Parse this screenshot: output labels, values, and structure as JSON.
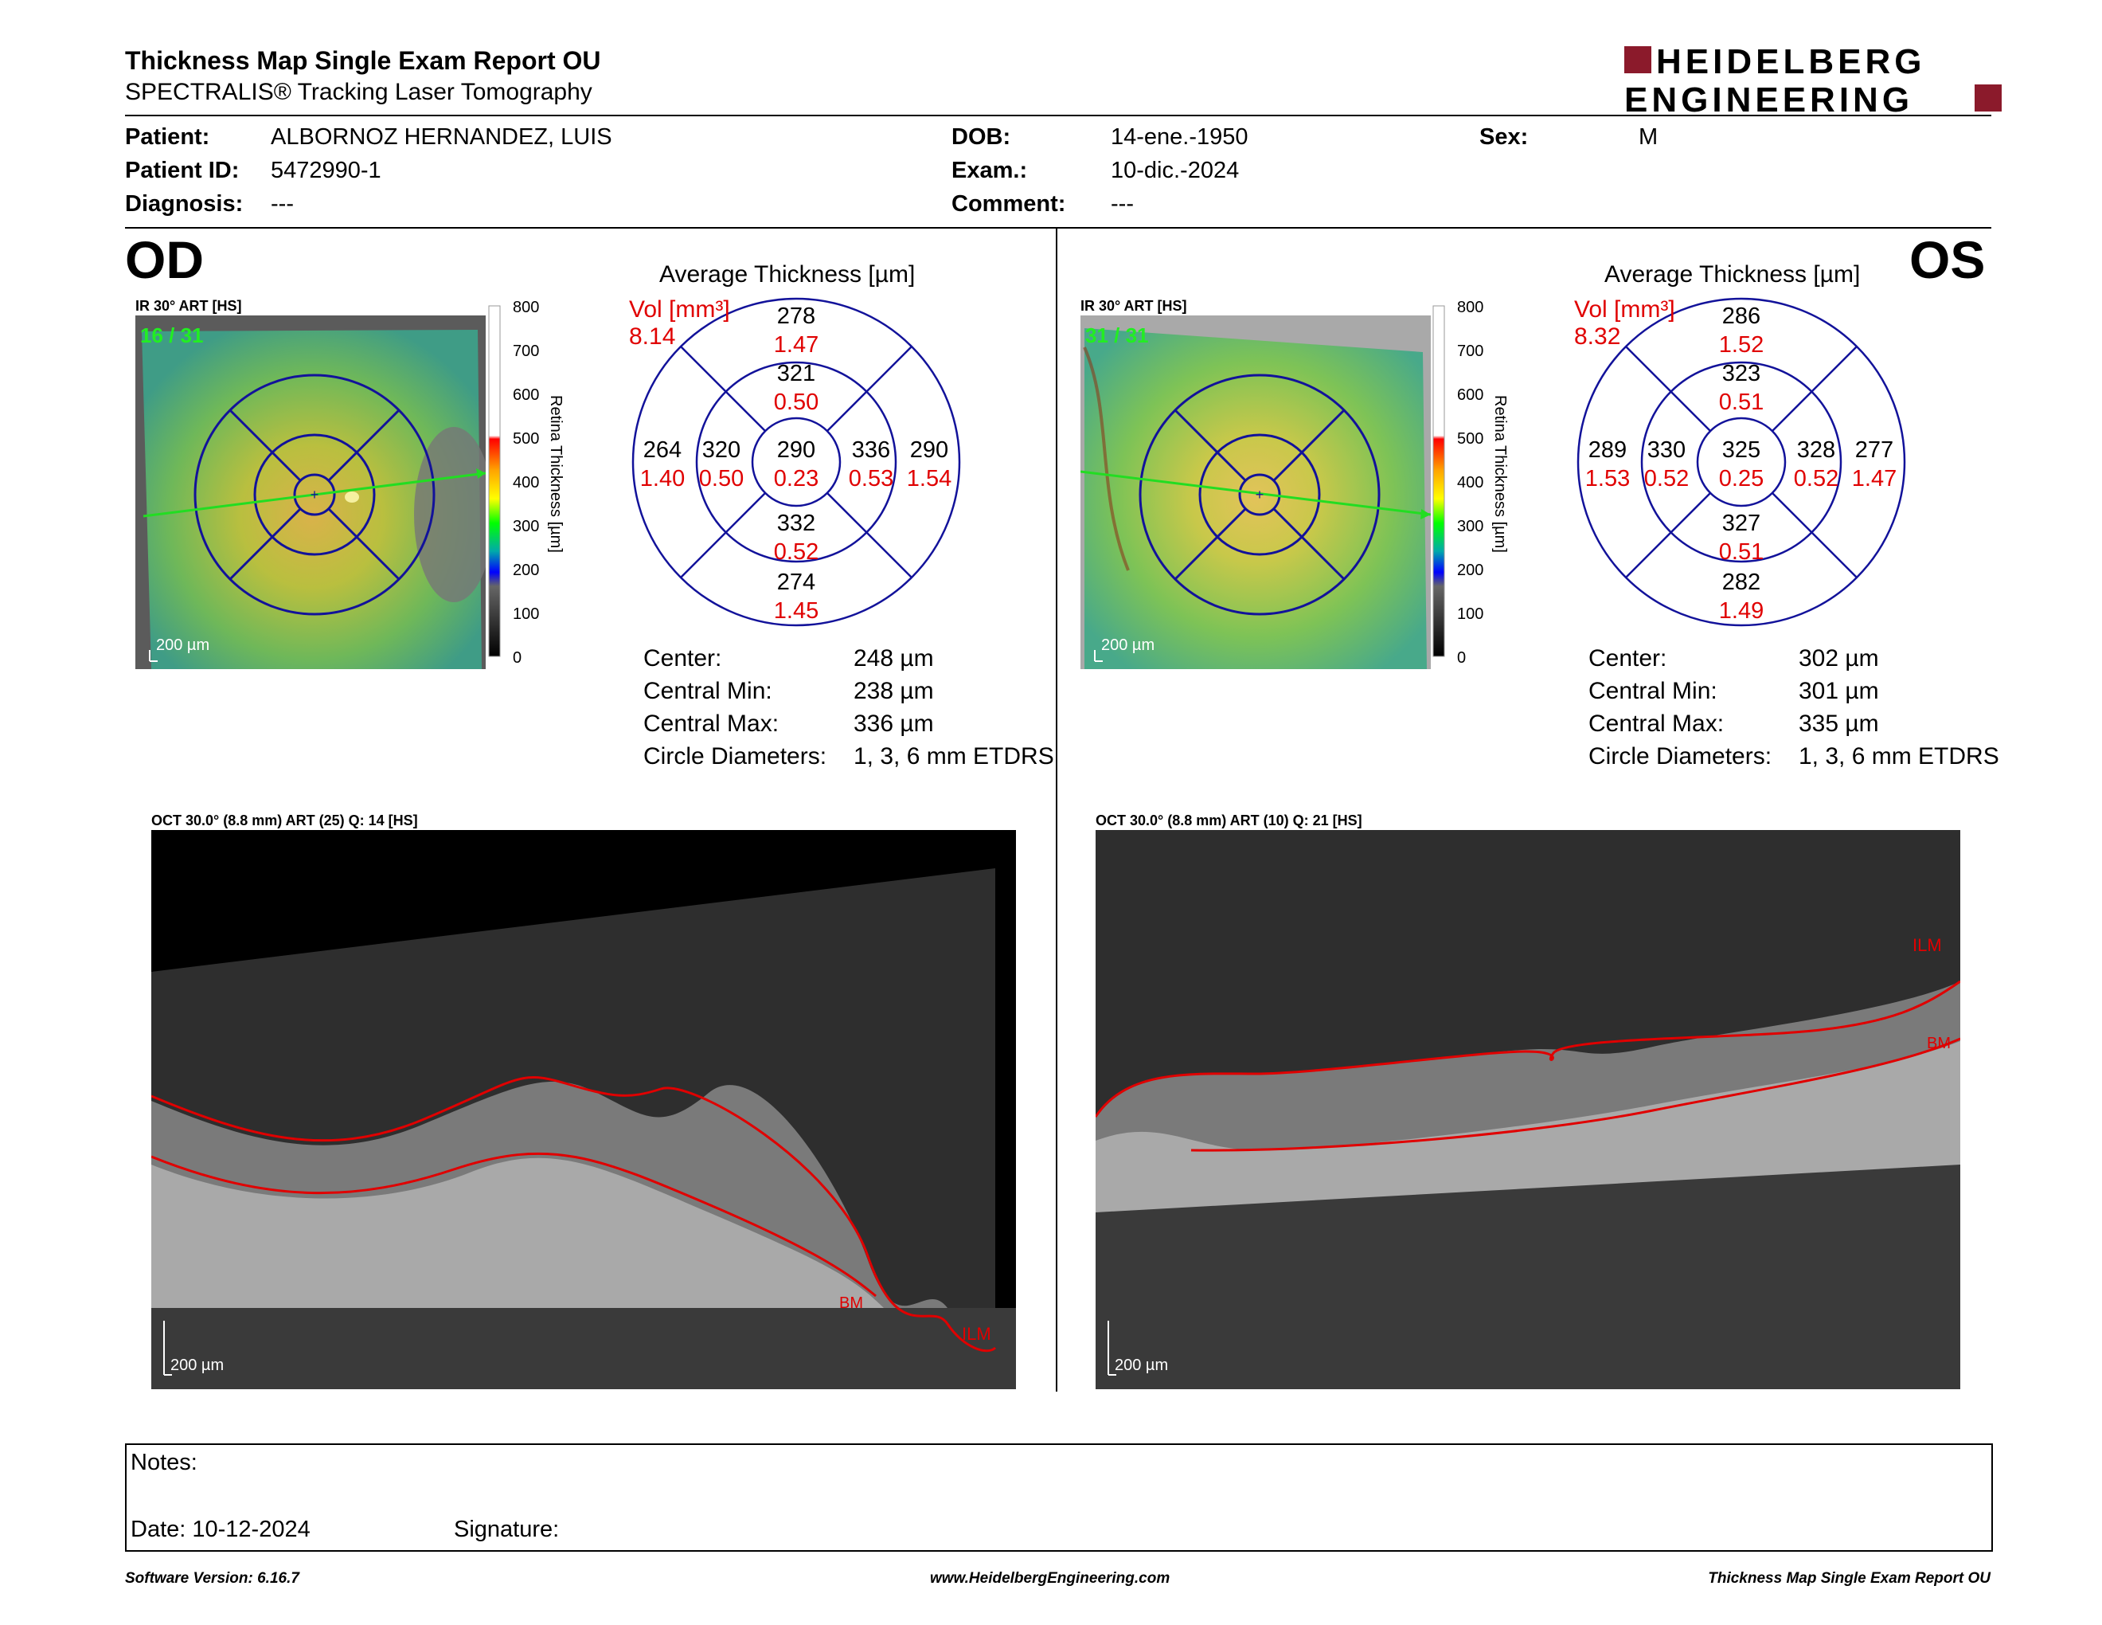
{
  "header": {
    "title": "Thickness Map Single Exam Report OU",
    "subtitle": "SPECTRALIS® Tracking Laser Tomography",
    "logo_line1": "HEIDELBERG",
    "logo_line2": "ENGINEERING",
    "brand_color": "#8b1a2b"
  },
  "patient": {
    "patient_label": "Patient:",
    "patient_value": "ALBORNOZ HERNANDEZ, LUIS",
    "id_label": "Patient ID:",
    "id_value": "5472990-1",
    "diagnosis_label": "Diagnosis:",
    "diagnosis_value": "---",
    "dob_label": "DOB:",
    "dob_value": "14-ene.-1950",
    "exam_label": "Exam.:",
    "exam_value": "10-dic.-2024",
    "comment_label": "Comment:",
    "comment_value": "---",
    "sex_label": "Sex:",
    "sex_value": "M"
  },
  "od": {
    "eye": "OD",
    "ir_label": "IR 30° ART [HS]",
    "frame_counter": "16 / 31",
    "scale_label": "200 µm",
    "colorbar_ticks": [
      "800",
      "700",
      "600",
      "500",
      "400",
      "300",
      "200",
      "100",
      "0"
    ],
    "colorbar_title": "Retina  Thickness [µm]",
    "avg_title": "Average Thickness [µm]",
    "vol_label": "Vol [mm³]",
    "vol_value": "8.14",
    "grid": {
      "outer_top": "278",
      "outer_top_vol": "1.47",
      "inner_top": "321",
      "inner_top_vol": "0.50",
      "outer_left": "264",
      "outer_left_vol": "1.40",
      "inner_left": "320",
      "inner_left_vol": "0.50",
      "center": "290",
      "center_vol": "0.23",
      "inner_right": "336",
      "inner_right_vol": "0.53",
      "outer_right": "290",
      "outer_right_vol": "1.54",
      "inner_bottom": "332",
      "inner_bottom_vol": "0.52",
      "outer_bottom": "274",
      "outer_bottom_vol": "1.45"
    },
    "stats": [
      {
        "label": "Center:",
        "value": "248 µm"
      },
      {
        "label": "Central Min:",
        "value": "238 µm"
      },
      {
        "label": "Central Max:",
        "value": "336 µm"
      },
      {
        "label": "Circle Diameters:",
        "value": "1, 3, 6 mm ETDRS"
      }
    ],
    "oct_label": "OCT 30.0° (8.8 mm) ART (25) Q: 14 [HS]",
    "oct_scale": "200 µm",
    "bm_label": "BM",
    "ilm_label": "ILM"
  },
  "os": {
    "eye": "OS",
    "ir_label": "IR 30° ART [HS]",
    "frame_counter": "31 / 31",
    "scale_label": "200 µm",
    "colorbar_ticks": [
      "800",
      "700",
      "600",
      "500",
      "400",
      "300",
      "200",
      "100",
      "0"
    ],
    "colorbar_title": "Retina  Thickness [µm]",
    "avg_title": "Average Thickness [µm]",
    "vol_label": "Vol [mm³]",
    "vol_value": "8.32",
    "grid": {
      "outer_top": "286",
      "outer_top_vol": "1.52",
      "inner_top": "323",
      "inner_top_vol": "0.51",
      "outer_left": "289",
      "outer_left_vol": "1.53",
      "inner_left": "330",
      "inner_left_vol": "0.52",
      "center": "325",
      "center_vol": "0.25",
      "inner_right": "328",
      "inner_right_vol": "0.52",
      "outer_right": "277",
      "outer_right_vol": "1.47",
      "inner_bottom": "327",
      "inner_bottom_vol": "0.51",
      "outer_bottom": "282",
      "outer_bottom_vol": "1.49"
    },
    "stats": [
      {
        "label": "Center:",
        "value": "302 µm"
      },
      {
        "label": "Central Min:",
        "value": "301 µm"
      },
      {
        "label": "Central Max:",
        "value": "335 µm"
      },
      {
        "label": "Circle Diameters:",
        "value": "1, 3, 6 mm ETDRS"
      }
    ],
    "oct_label": "OCT 30.0° (8.8 mm) ART (10) Q: 21 [HS]",
    "oct_scale": "200 µm",
    "ilm_label": "ILM",
    "bm_label": "BM"
  },
  "notes": {
    "notes_label": "Notes:",
    "date_label": "Date: 10-12-2024",
    "signature_label": "Signature:"
  },
  "footer": {
    "software": "Software Version: 6.16.7",
    "website": "www.HeidelbergEngineering.com",
    "report": "Thickness Map Single Exam Report OU"
  }
}
